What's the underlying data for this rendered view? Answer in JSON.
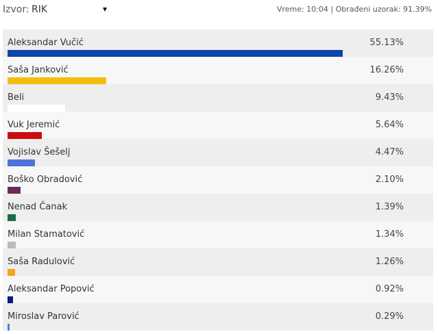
{
  "header": {
    "source_label": "Izvor:",
    "source_value": "RIK",
    "status": "Vreme: 10:04 | Obrađeni uzorak: 91.39%"
  },
  "results": [
    {
      "name": "Aleksandar Vučić",
      "percent_label": "55.13%",
      "value": 55.13,
      "color": "#0b45a8"
    },
    {
      "name": "Saša Janković",
      "percent_label": "16.26%",
      "value": 16.26,
      "color": "#f5bd0f"
    },
    {
      "name": "Beli",
      "percent_label": "9.43%",
      "value": 9.43,
      "color": "#ffffff"
    },
    {
      "name": "Vuk Jeremić",
      "percent_label": "5.64%",
      "value": 5.64,
      "color": "#cc0a10"
    },
    {
      "name": "Vojislav Šešelj",
      "percent_label": "4.47%",
      "value": 4.47,
      "color": "#4f72d8"
    },
    {
      "name": "Boško Obradović",
      "percent_label": "2.10%",
      "value": 2.1,
      "color": "#6a2a5a"
    },
    {
      "name": "Nenad Čanak",
      "percent_label": "1.39%",
      "value": 1.39,
      "color": "#1e6a44"
    },
    {
      "name": "Milan Stamatović",
      "percent_label": "1.34%",
      "value": 1.34,
      "color": "#bcbcbc"
    },
    {
      "name": "Saša Radulović",
      "percent_label": "1.26%",
      "value": 1.26,
      "color": "#f5a31c"
    },
    {
      "name": "Aleksandar Popović",
      "percent_label": "0.92%",
      "value": 0.92,
      "color": "#0a1a7a"
    },
    {
      "name": "Miroslav Parović",
      "percent_label": "0.29%",
      "value": 0.29,
      "color": "#3a8ad8"
    }
  ]
}
